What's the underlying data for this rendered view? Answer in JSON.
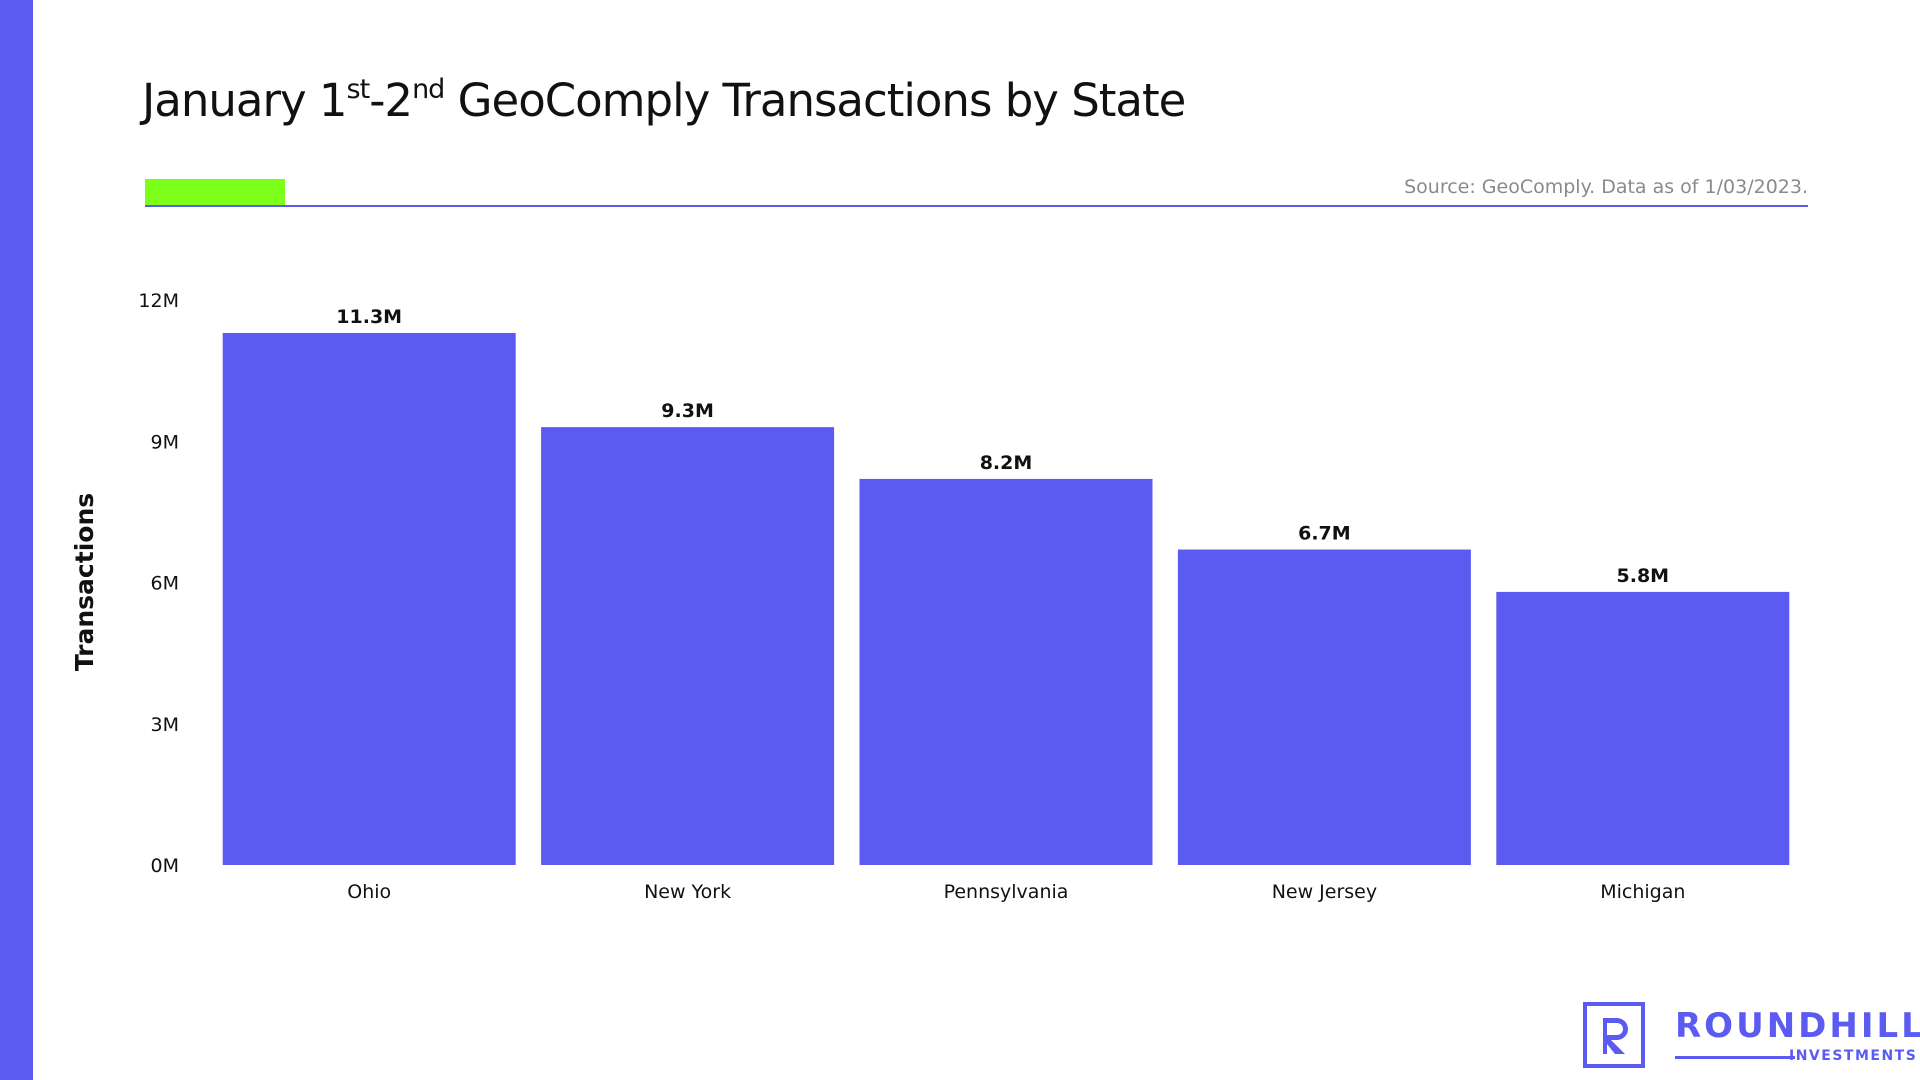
{
  "title": {
    "part1": "January 1",
    "sup1": "st",
    "part2": "-2",
    "sup2": "nd",
    "part3": " GeoComply Transactions by State"
  },
  "source": "Source: GeoComply. Data as of 1/03/2023.",
  "colors": {
    "bar": "#5B5BF2",
    "accent": "#7CFF1A",
    "stripe": "#5B5BF2"
  },
  "chart_data": {
    "type": "bar",
    "categories": [
      "Ohio",
      "New York",
      "Pennsylvania",
      "New Jersey",
      "Michigan"
    ],
    "values": [
      11.3,
      9.3,
      8.2,
      6.7,
      5.8
    ],
    "value_labels": [
      "11.3M",
      "9.3M",
      "8.2M",
      "6.7M",
      "5.8M"
    ],
    "ylabel": "Transactions",
    "xlabel": "",
    "ylim": [
      0,
      12
    ],
    "yticks": [
      0,
      3,
      6,
      9,
      12
    ],
    "ytick_labels": [
      "0M",
      "3M",
      "6M",
      "9M",
      "12M"
    ],
    "grid": false,
    "legend": "none"
  },
  "logo": {
    "word": "ROUNDHILL",
    "sub": "INVESTMENTS"
  }
}
